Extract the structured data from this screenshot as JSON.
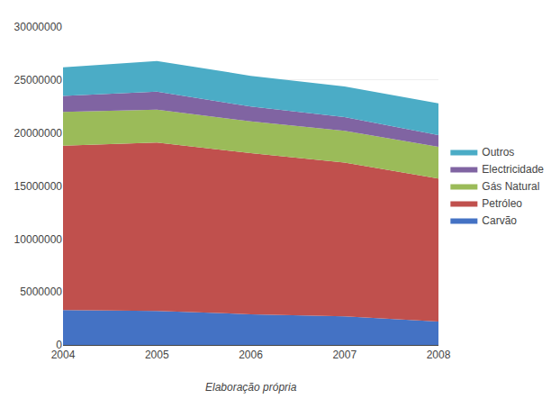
{
  "chart_data": {
    "type": "area",
    "stacked": true,
    "x": [
      2004,
      2005,
      2006,
      2007,
      2008
    ],
    "series": [
      {
        "name": "Carvão",
        "color": "#4472C4",
        "values": [
          3300000,
          3200000,
          2900000,
          2700000,
          2200000
        ]
      },
      {
        "name": "Petróleo",
        "color": "#C0504D",
        "values": [
          15500000,
          15900000,
          15200000,
          14500000,
          13500000
        ]
      },
      {
        "name": "Gás Natural",
        "color": "#9BBB59",
        "values": [
          3200000,
          3100000,
          3000000,
          3000000,
          3000000
        ]
      },
      {
        "name": "Electricidade",
        "color": "#8064A2",
        "values": [
          1500000,
          1700000,
          1400000,
          1300000,
          1100000
        ]
      },
      {
        "name": "Outros",
        "color": "#4BACC6",
        "values": [
          2700000,
          2900000,
          2900000,
          2900000,
          3000000
        ]
      }
    ],
    "xlim": [
      2004,
      2008
    ],
    "xticks": [
      2004,
      2005,
      2006,
      2007,
      2008
    ],
    "ylim": [
      0,
      30000000
    ],
    "yticks": [
      0,
      5000000,
      10000000,
      15000000,
      20000000,
      25000000,
      30000000
    ],
    "grid": true,
    "legend": "right",
    "annotations": [
      "Elaboração própria"
    ]
  }
}
